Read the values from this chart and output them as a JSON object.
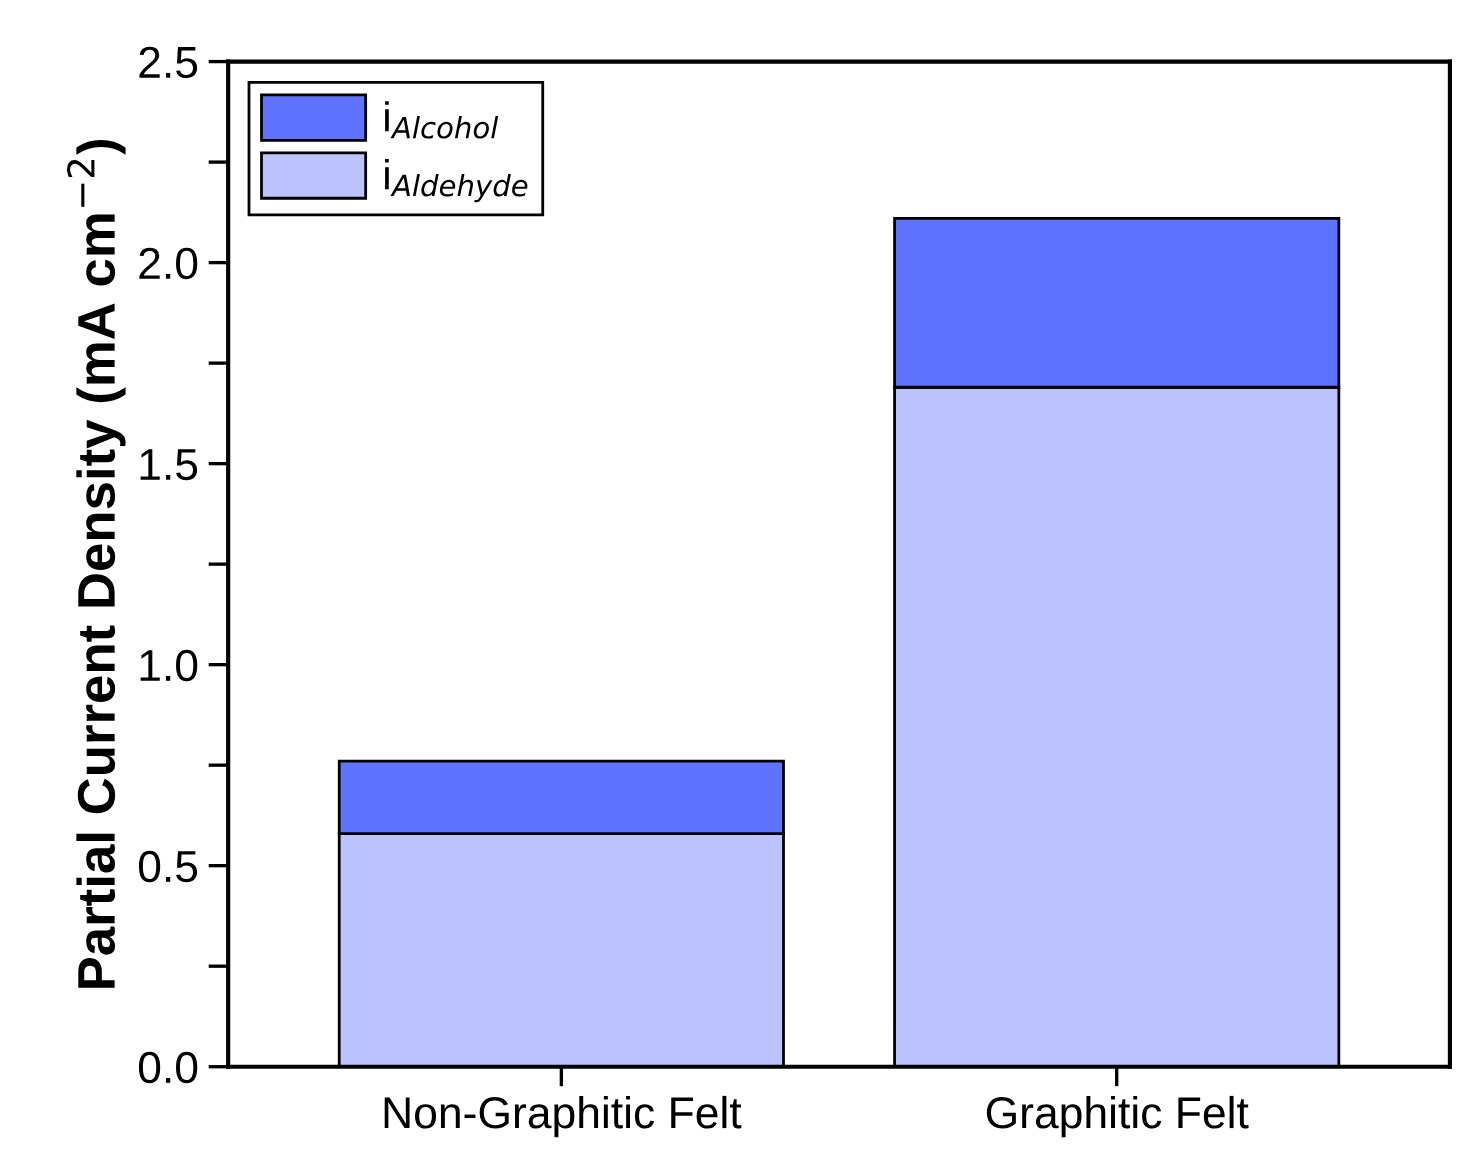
{
  "chart_data": {
    "type": "bar",
    "stacked": true,
    "ylabel": "Partial Current Density (mA cm$^{−2}$)",
    "categories": [
      "Non-Graphitic Felt",
      "Graphitic Felt"
    ],
    "series": [
      {
        "name": "i$_{Aldehyde}$",
        "color": "#bcc3ff",
        "values": [
          0.58,
          1.69
        ]
      },
      {
        "name": "i$_{Alcohol}$",
        "color": "#6073ff",
        "values": [
          0.18,
          0.42
        ]
      }
    ],
    "ylim": [
      0,
      2.5
    ],
    "yticks": [
      {
        "value": 0,
        "label": "0.0"
      },
      {
        "value": 0.25,
        "label": null
      },
      {
        "value": 0.5,
        "label": "0.5"
      },
      {
        "value": 0.75,
        "label": null
      },
      {
        "value": 1.0,
        "label": "1.0"
      },
      {
        "value": 1.25,
        "label": null
      },
      {
        "value": 1.5,
        "label": "1.5"
      },
      {
        "value": 1.75,
        "label": null
      },
      {
        "value": 2.0,
        "label": "2.0"
      },
      {
        "value": 2.25,
        "label": null
      },
      {
        "value": 2.5,
        "label": "2.5"
      }
    ],
    "legend": "top left",
    "grid": false
  }
}
